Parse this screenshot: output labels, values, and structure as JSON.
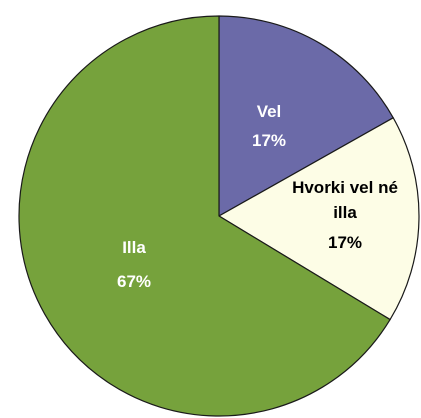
{
  "chart_data": {
    "type": "pie",
    "start_angle_deg": 0,
    "direction": "clockwise",
    "slices": [
      {
        "label": "Vel",
        "value": 17,
        "display": "17%",
        "color": "#6b6aa8",
        "text_color": "#ffffff"
      },
      {
        "label": "Hvorki vel né illa",
        "value": 17,
        "display": "17%",
        "color": "#fdfde6",
        "text_color": "#000000"
      },
      {
        "label": "Illa",
        "value": 67,
        "display": "67%",
        "color": "#76a23c",
        "text_color": "#ffffff"
      }
    ]
  }
}
